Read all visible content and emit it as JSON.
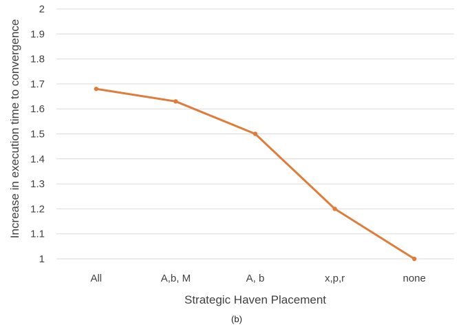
{
  "chart_data": {
    "type": "line",
    "categories": [
      "All",
      "A,b,  M",
      "A, b",
      "x,p,r",
      "none"
    ],
    "series": [
      {
        "values": [
          1.68,
          1.63,
          1.5,
          1.2,
          1.0
        ]
      }
    ],
    "xlabel": "Strategic Haven Placement",
    "ylabel": "Increase in execution time to convergence",
    "ylim": [
      1,
      2
    ],
    "yticks": [
      "1",
      "1.1",
      "1.2",
      "1.3",
      "1.4",
      "1.5",
      "1.6",
      "1.7",
      "1.8",
      "1.9",
      "2"
    ],
    "grid": true,
    "legend": "none",
    "caption": "(b)",
    "colors": {
      "series": "#E07B39",
      "grid": "#d9d9d9",
      "text": "#404040"
    }
  }
}
